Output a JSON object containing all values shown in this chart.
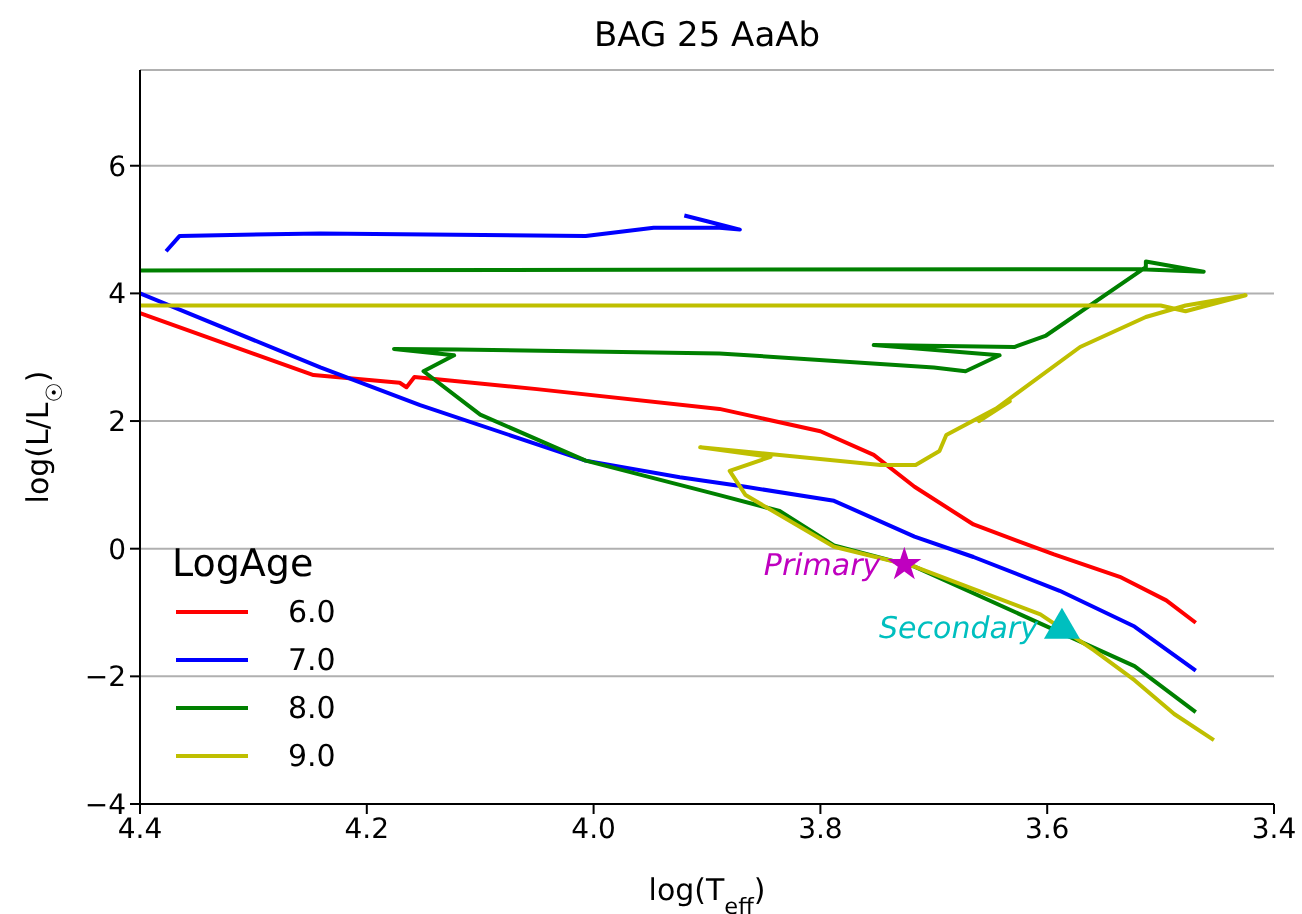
{
  "chart_data": {
    "type": "line",
    "title": "BAG 25 AaAb",
    "xlabel": "log(T$_{eff}$)",
    "ylabel": "log(L/L$_{☉}$)",
    "legend_title": "LogAge",
    "legend": "bottom left",
    "grid": "y",
    "line_style": "solid",
    "xlim": [
      4.4,
      3.4
    ],
    "xticks": [
      4.4,
      4.2,
      {
        "value": 4,
        "label": "4.0"
      },
      3.8,
      3.6,
      3.4
    ],
    "ylim": [
      -4,
      7.5
    ],
    "yticks": [
      -4,
      -2,
      0,
      2,
      4,
      6
    ],
    "series": [
      {
        "name": "6.0",
        "color": "#ff0000",
        "marker": "none",
        "x": [
          4.4,
          4.247,
          4.171,
          4.165,
          4.158,
          4.05,
          3.889,
          3.8,
          3.753,
          3.717,
          3.665,
          3.594,
          3.536,
          3.495,
          3.469
        ],
        "values": [
          3.69,
          2.72,
          2.6,
          2.53,
          2.69,
          2.5,
          2.19,
          1.84,
          1.47,
          0.97,
          0.38,
          -0.09,
          -0.44,
          -0.81,
          -1.16
        ]
      },
      {
        "name": "7.0",
        "color": "#0000ff",
        "marker": "none",
        "x": [
          3.469,
          3.523,
          3.589,
          3.665,
          3.717,
          3.788,
          3.866,
          3.924,
          4.007,
          4.153,
          4.241,
          4.4,
          null,
          4.377,
          4.365,
          4.241,
          4.007,
          3.947,
          3.889,
          3.871,
          3.9,
          3.92
        ],
        "values": [
          -1.91,
          -1.22,
          -0.66,
          -0.13,
          0.19,
          0.75,
          0.97,
          1.12,
          1.38,
          2.25,
          2.84,
          4.0,
          null,
          4.66,
          4.9,
          4.94,
          4.9,
          5.03,
          5.03,
          5.0,
          5.13,
          5.22
        ]
      },
      {
        "name": "8.0",
        "color": "#008000",
        "marker": "none",
        "x": [
          3.469,
          3.523,
          3.717,
          3.788,
          3.836,
          3.889,
          4.007,
          4.1,
          4.15,
          4.123,
          4.176,
          4.12,
          3.889,
          3.7,
          3.672,
          3.642,
          3.753,
          3.629,
          3.601,
          3.513,
          3.513,
          3.462,
          3.518,
          4.4
        ],
        "values": [
          -2.56,
          -1.84,
          -0.28,
          0.05,
          0.59,
          0.84,
          1.38,
          2.1,
          2.78,
          3.03,
          3.13,
          3.12,
          3.06,
          2.84,
          2.78,
          3.03,
          3.19,
          3.16,
          3.34,
          4.41,
          4.5,
          4.34,
          4.38,
          4.36
        ]
      },
      {
        "name": "9.0",
        "color": "#bfbf00",
        "marker": "none",
        "x": [
          3.453,
          3.488,
          3.523,
          3.559,
          3.606,
          3.717,
          3.788,
          3.866,
          3.88,
          3.844,
          3.906,
          3.747,
          3.716,
          3.695,
          3.689,
          3.633,
          3.66,
          3.571,
          3.513,
          3.478,
          3.425,
          3.478,
          3.5,
          4.4
        ],
        "values": [
          -3.0,
          -2.59,
          -2.06,
          -1.59,
          -1.03,
          -0.28,
          0.03,
          0.84,
          1.22,
          1.44,
          1.59,
          1.31,
          1.31,
          1.53,
          1.78,
          2.31,
          2.0,
          3.16,
          3.63,
          3.81,
          3.97,
          3.72,
          3.81,
          3.81
        ]
      },
      {
        "name": "Primary",
        "type": "scatter",
        "color": "#bf00bf",
        "marker": "star",
        "x": [
          3.726
        ],
        "values": [
          -0.25
        ]
      },
      {
        "name": "Secondary",
        "type": "scatter",
        "color": "#00bfbf",
        "marker": "triangle",
        "x": [
          3.587
        ],
        "values": [
          -1.25
        ]
      }
    ]
  }
}
